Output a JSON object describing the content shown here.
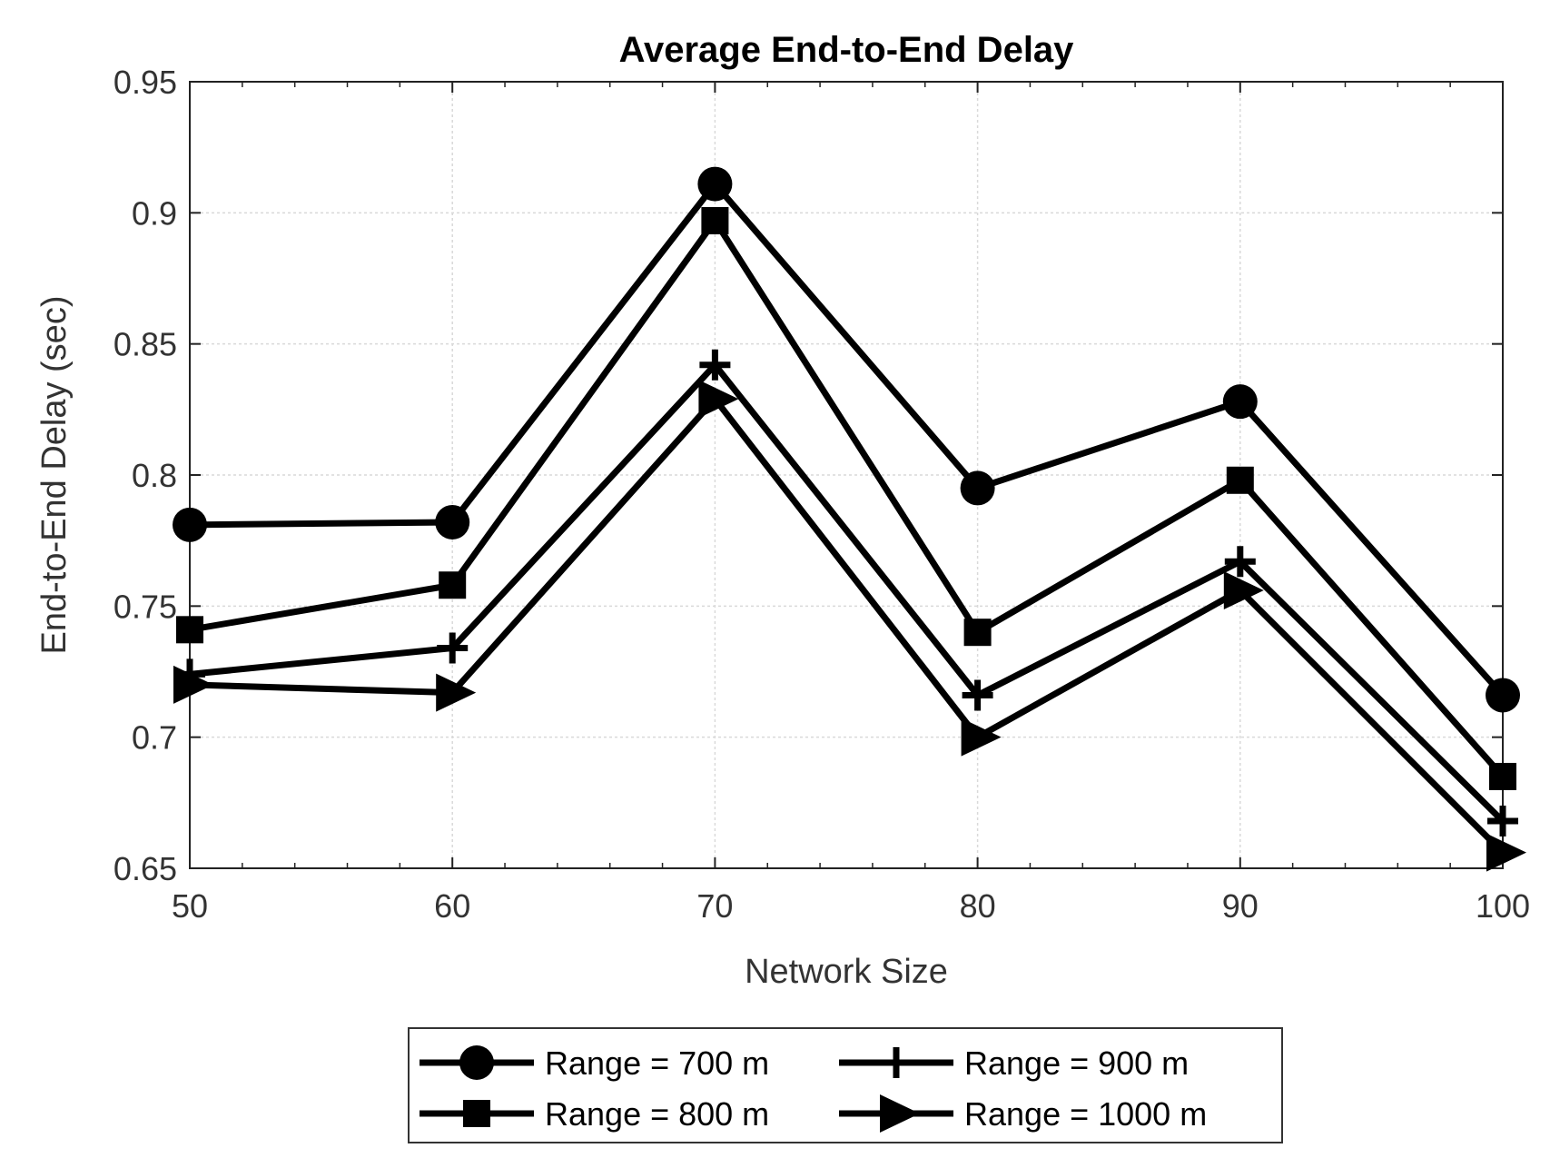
{
  "chart_data": {
    "type": "line",
    "title": "Average End-to-End Delay",
    "xlabel": "Network Size",
    "ylabel": "End-to-End Delay (sec)",
    "x": [
      50,
      60,
      70,
      80,
      90,
      100
    ],
    "xlim": [
      50,
      100
    ],
    "ylim": [
      0.65,
      0.95
    ],
    "xticks": [
      "50",
      "60",
      "70",
      "80",
      "90",
      "100"
    ],
    "yticks": [
      "0.65",
      "0.7",
      "0.75",
      "0.8",
      "0.85",
      "0.9",
      "0.95"
    ],
    "grid": true,
    "legend_position": "bottom-outside",
    "series": [
      {
        "name": "Range = 700 m",
        "marker": "circle",
        "values": [
          0.781,
          0.782,
          0.911,
          0.795,
          0.828,
          0.716
        ]
      },
      {
        "name": "Range = 800 m",
        "marker": "square",
        "values": [
          0.741,
          0.758,
          0.897,
          0.74,
          0.798,
          0.685
        ]
      },
      {
        "name": "Range = 900 m",
        "marker": "plus",
        "values": [
          0.724,
          0.734,
          0.842,
          0.716,
          0.767,
          0.668
        ]
      },
      {
        "name": "Range = 1000 m",
        "marker": "triangle-right",
        "values": [
          0.72,
          0.717,
          0.829,
          0.7,
          0.756,
          0.656
        ]
      }
    ],
    "colors": {
      "line": "#000000",
      "grid": "#d9d9d9"
    }
  }
}
